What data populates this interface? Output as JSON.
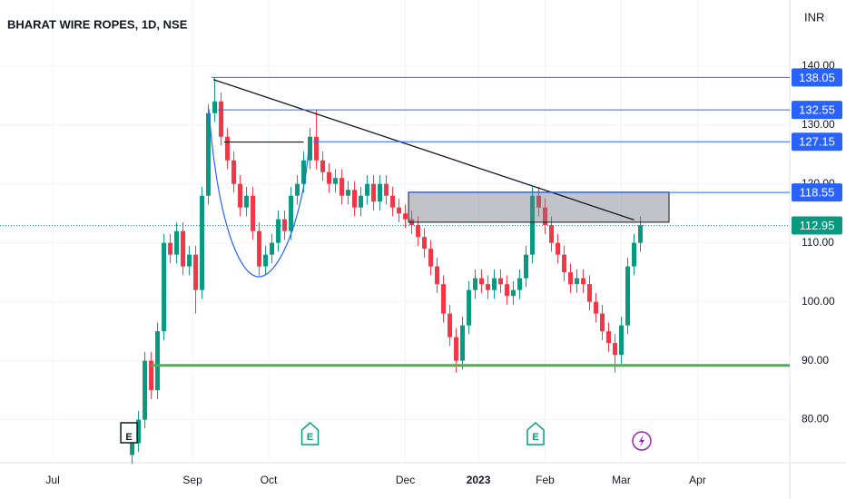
{
  "chart_data": {
    "type": "candlestick",
    "title": "BHARAT WIRE ROPES, 1D, NSE",
    "currency": "INR",
    "x": [
      25,
      27,
      29,
      31,
      33,
      35,
      37,
      39,
      41,
      43,
      45,
      47,
      49,
      51,
      53,
      55,
      57,
      59,
      61,
      63,
      65,
      67,
      69,
      71,
      73,
      75,
      77,
      79,
      81,
      83,
      85,
      87,
      89,
      91,
      93,
      95,
      97,
      99,
      101,
      103,
      105,
      107,
      109,
      111,
      113,
      115,
      117,
      119,
      121,
      123,
      125,
      127,
      129,
      131,
      133,
      135,
      137,
      139,
      141,
      143,
      145,
      147,
      149,
      151,
      153,
      155,
      157,
      159,
      161,
      163,
      165,
      167,
      169,
      171,
      173,
      175,
      177,
      179,
      181,
      183,
      185
    ],
    "open": [
      74,
      76,
      80,
      90,
      85,
      95,
      110,
      108,
      112,
      106,
      108,
      102,
      118,
      132,
      134,
      128,
      124,
      120,
      116,
      118,
      112,
      106,
      108,
      110,
      114,
      112,
      118,
      120,
      124,
      128,
      124,
      122,
      120,
      121,
      118,
      119,
      116,
      118,
      120,
      117,
      120,
      118,
      116,
      115,
      114,
      113,
      111,
      109,
      106,
      103,
      98,
      94,
      90,
      96,
      102,
      104,
      103,
      102,
      104,
      103,
      101,
      102,
      104,
      108,
      118,
      116,
      113,
      110,
      108,
      105,
      103,
      104,
      103,
      100,
      98,
      95,
      93,
      91,
      96,
      106,
      110
    ],
    "high": [
      77.5,
      81.5,
      91.5,
      91.5,
      96.5,
      111.5,
      111.5,
      113.5,
      113.5,
      109.5,
      109.5,
      119.5,
      133.5,
      138.05,
      135.5,
      129.5,
      125.5,
      121.5,
      119.5,
      119.5,
      113.5,
      109.5,
      111.5,
      115.5,
      115.5,
      119.5,
      121.5,
      125.5,
      129.5,
      132.55,
      125.5,
      123.5,
      122.5,
      122.5,
      120.5,
      120.5,
      119.5,
      121.5,
      121.5,
      121.5,
      121.5,
      119.5,
      117.5,
      116.5,
      115.5,
      114.5,
      112.5,
      110.5,
      107.5,
      104.5,
      99.5,
      95.5,
      97.5,
      103.5,
      105.5,
      105.5,
      104.5,
      105.5,
      105.5,
      104.5,
      103.5,
      105.5,
      109.5,
      119.5,
      119.5,
      117.5,
      114.5,
      111.5,
      109.5,
      106.5,
      105.5,
      105.5,
      104.5,
      101.5,
      99.5,
      96.5,
      94.5,
      97.5,
      107.5,
      111.5,
      114.5
    ],
    "low": [
      72.5,
      74.5,
      78.5,
      83.5,
      83.5,
      93.5,
      106.5,
      106.5,
      104.5,
      104.5,
      98,
      100.5,
      116.5,
      130.5,
      126.5,
      122.5,
      118.5,
      114.5,
      114.5,
      110.5,
      104.5,
      104.5,
      106.5,
      108.5,
      110.5,
      110.5,
      116.5,
      118.5,
      122.5,
      122.5,
      120.5,
      118.5,
      118.5,
      116.5,
      116.5,
      114.5,
      114.5,
      116.5,
      115.5,
      115.5,
      116.5,
      114.5,
      113.5,
      112.5,
      111.5,
      109.5,
      107.5,
      104.5,
      101.5,
      96.5,
      92.5,
      88,
      88.5,
      94.5,
      100.5,
      101.5,
      100.5,
      100.5,
      101.5,
      99.5,
      99.5,
      100.5,
      102.5,
      106.5,
      114.5,
      111.5,
      108.5,
      106.5,
      103.5,
      101.5,
      101.5,
      101.5,
      98.5,
      96.5,
      93.5,
      91.5,
      88,
      89.5,
      94.5,
      104.5,
      108.5
    ],
    "close": [
      76,
      80,
      90,
      85,
      95,
      110,
      108,
      112,
      106,
      108,
      102,
      118,
      132,
      134,
      128,
      124,
      120,
      116,
      118,
      112,
      106,
      108,
      110,
      114,
      112,
      118,
      120,
      124,
      128,
      124,
      122,
      120,
      121,
      118,
      119,
      116,
      118,
      120,
      117,
      120,
      118,
      116,
      115,
      114,
      113,
      111,
      109,
      106,
      103,
      98,
      94,
      90,
      96,
      102,
      104,
      103,
      102,
      104,
      103,
      101,
      102,
      104,
      108,
      118,
      116,
      113,
      110,
      108,
      105,
      103,
      104,
      103,
      100,
      98,
      95,
      93,
      91,
      96,
      106,
      110,
      113
    ],
    "up_color": "#089981",
    "down_color": "#f23645",
    "xlim": [
      -16.6,
      232
    ],
    "xticks": [
      {
        "value": 0,
        "label": "Jul"
      },
      {
        "value": 44,
        "label": "Sep"
      },
      {
        "value": 68,
        "label": "Oct"
      },
      {
        "value": 111,
        "label": "Dec"
      },
      {
        "value": 134,
        "label": "2023"
      },
      {
        "value": 155,
        "label": "Feb"
      },
      {
        "value": 179,
        "label": "Mar"
      },
      {
        "value": 203,
        "label": "Apr"
      }
    ],
    "ylim": [
      72.7,
      151.2
    ],
    "yticks": [
      {
        "value": 80,
        "label": "80.00"
      },
      {
        "value": 90,
        "label": "90.00"
      },
      {
        "value": 100,
        "label": "100.00"
      },
      {
        "value": 110,
        "label": "110.00"
      },
      {
        "value": 120,
        "label": "120.00"
      },
      {
        "value": 130,
        "label": "130.00"
      },
      {
        "value": 140,
        "label": "140.00"
      }
    ],
    "levels": [
      {
        "value": 138.05,
        "label": "138.05",
        "start": 50,
        "color": "#2962ff"
      },
      {
        "value": 132.55,
        "label": "132.55",
        "start": 52,
        "color": "#2962ff"
      },
      {
        "value": 127.15,
        "label": "127.15",
        "start": 82,
        "color": "#2962ff"
      },
      {
        "value": 118.55,
        "label": "118.55",
        "start": 112,
        "color": "#2962ff"
      }
    ],
    "last_price": {
      "value": 112.95,
      "label": "112.95",
      "color": "#089981"
    },
    "support_level": 89.2,
    "support_start": 31,
    "support_color": "#4caf50",
    "zone": {
      "x": [
        112,
        194
      ],
      "y": [
        113.5,
        118.6
      ]
    },
    "trend_line": {
      "x": [
        50.6,
        183
      ],
      "y": [
        137.7,
        113.9
      ]
    },
    "neck_line": {
      "x": [
        54,
        79
      ],
      "y": 127.1
    },
    "events": [
      {
        "label": "E",
        "x": 24
      },
      {
        "label": "E",
        "x": 81
      },
      {
        "label": "E",
        "x": 152
      }
    ]
  }
}
